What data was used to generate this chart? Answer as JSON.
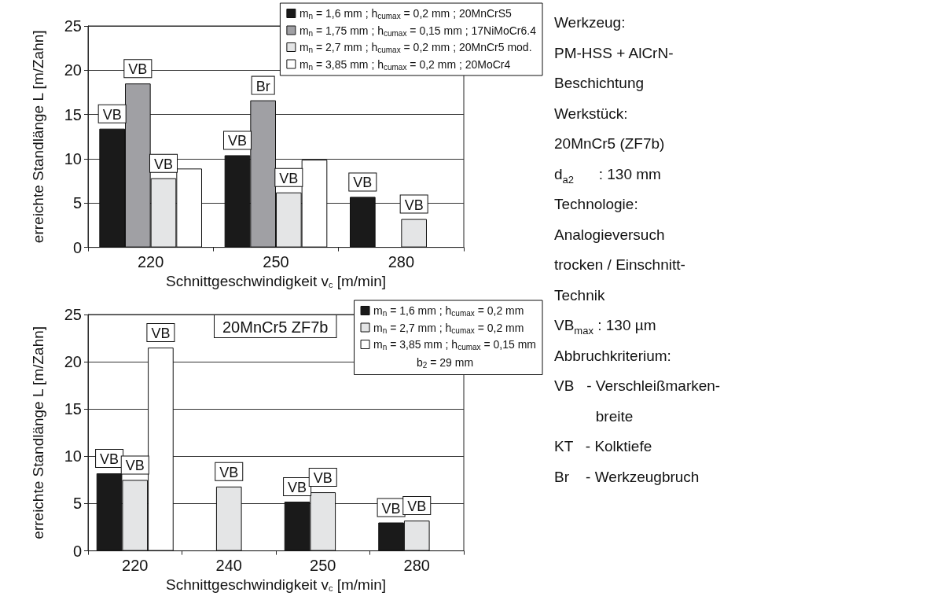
{
  "chart_data": [
    {
      "type": "bar",
      "xlabel": "Schnittgeschwindigkeit v$_{c}$ [m/min]",
      "ylabel": "erreichte Standlänge L [m/Zahn]",
      "categories": [
        "220",
        "250",
        "280"
      ],
      "series": [
        {
          "name": "m$_{n}$ = 1,6 mm ; h$_{cumax}$ = 0,2 mm ; 20MnCrS5",
          "color": "#1a1a1a",
          "values": [
            13.4,
            10.4,
            5.7
          ],
          "value_labels": [
            "VB",
            "VB",
            "VB"
          ]
        },
        {
          "name": "m$_{n}$ = 1,75 mm ; h$_{cumax}$ = 0,15 mm ; 17NiMoCr6.4",
          "color": "#a0a0a4",
          "values": [
            18.5,
            16.6,
            null
          ],
          "value_labels": [
            "VB",
            "Br",
            null
          ]
        },
        {
          "name": "m$_{n}$ = 2,7 mm ; h$_{cumax}$ = 0,2 mm ; 20MnCr5 mod.",
          "color": "#e4e5e6",
          "values": [
            7.8,
            6.2,
            3.2
          ],
          "value_labels": [
            "VB",
            "VB",
            "VB"
          ]
        },
        {
          "name": "m$_{n}$ = 3,85 mm ; h$_{cumax}$ = 0,2 mm ; 20MoCr4",
          "color": "#ffffff",
          "values": [
            8.9,
            9.9,
            0
          ],
          "value_labels": [
            null,
            null,
            null
          ]
        }
      ],
      "ylim": [
        0,
        25
      ],
      "yticks": [
        0,
        5,
        10,
        15,
        20,
        25
      ],
      "grid": "y",
      "legend": "top right",
      "annotations": [
        "Werkzeug:",
        "PM-HSS + AlCrN-",
        "Beschichtung",
        "Werkstück:",
        "20MnCr5 (ZF7b)",
        "d$_{a2}$      : 130 mm",
        "Technologie:",
        "Analogieversuch",
        "trocken / Einschnitt-",
        "Technik",
        "VB$_{max}$ : 130 µm",
        "Abbruchkriterium:",
        "VB   - Verschleißmarken-",
        "          breite",
        "KT   - Kolktiefe",
        "Br    - Werkzeugbruch"
      ]
    },
    {
      "type": "bar",
      "xlabel": "Schnittgeschwindigkeit v$_{c}$ [m/min]",
      "ylabel": "erreichte Standlänge L [m/Zahn]",
      "categories": [
        "220",
        "240",
        "250",
        "280"
      ],
      "series": [
        {
          "name": "m$_{n}$ = 1,6 mm ; h$_{cumax}$ = 0,2 mm",
          "color": "#1a1a1a",
          "values": [
            8.2,
            null,
            5.2,
            3.0
          ],
          "value_labels": [
            "VB",
            null,
            "VB",
            "VB"
          ]
        },
        {
          "name": "m$_{n}$ = 2,7 mm ; h$_{cumax}$ = 0,2 mm",
          "color": "#e4e5e6",
          "values": [
            7.5,
            6.8,
            6.2,
            3.2
          ],
          "value_labels": [
            "VB",
            "VB",
            "VB",
            "VB"
          ]
        },
        {
          "name": "m$_{n}$ = 3,85 mm ; h$_{cumax}$ = 0,15 mm",
          "color": "#ffffff",
          "values": [
            21.5,
            null,
            null,
            null
          ],
          "value_labels": [
            "VB",
            null,
            null,
            null
          ]
        }
      ],
      "ylim": [
        0,
        25
      ],
      "yticks": [
        0,
        5,
        10,
        15,
        20,
        25
      ],
      "grid": "y",
      "legend": "top right",
      "annotations": [
        "20MnCr5 ZF7b",
        "b$_{2}$ = 29 mm"
      ]
    }
  ]
}
